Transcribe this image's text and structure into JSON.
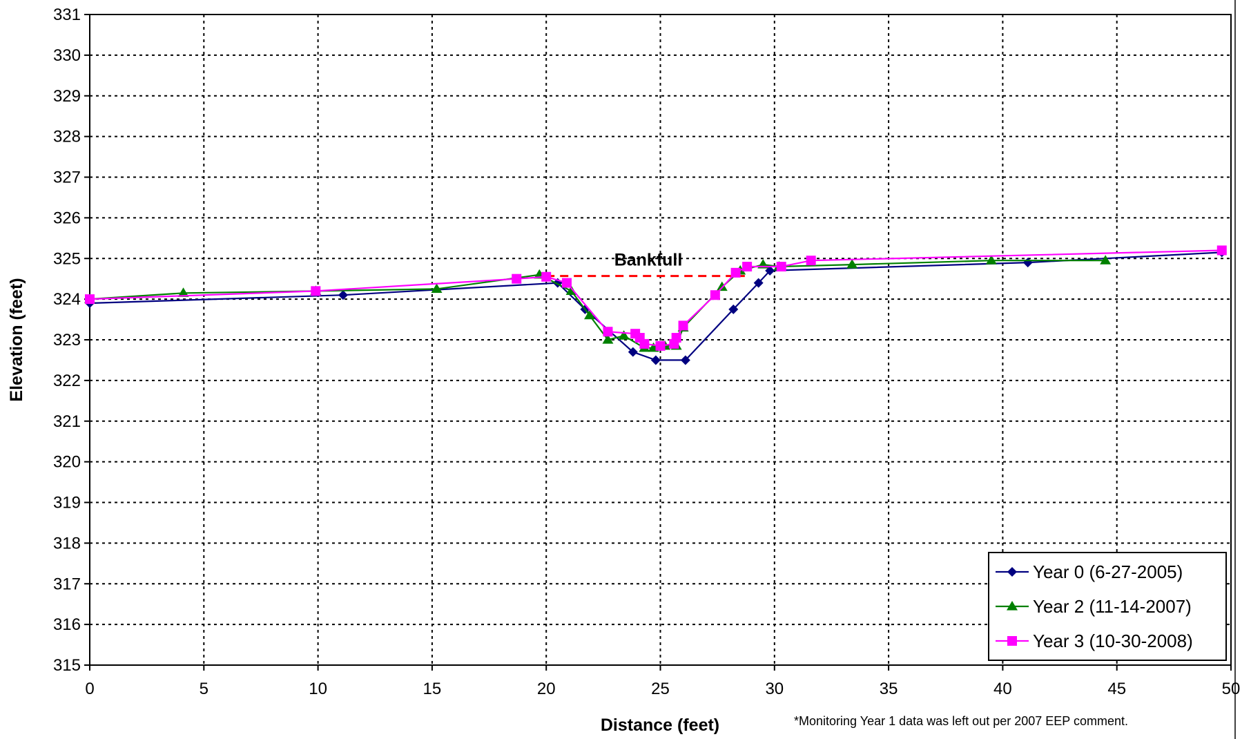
{
  "chart_data": {
    "type": "line",
    "title": "",
    "xlabel": "Distance (feet)",
    "ylabel": "Elevation (feet)",
    "xlim": [
      0,
      50
    ],
    "ylim": [
      315,
      331
    ],
    "x_ticks": [
      0,
      5,
      10,
      15,
      20,
      25,
      30,
      35,
      40,
      45,
      50
    ],
    "y_ticks": [
      315,
      316,
      317,
      318,
      319,
      320,
      321,
      322,
      323,
      324,
      325,
      326,
      327,
      328,
      329,
      330,
      331
    ],
    "grid": true,
    "legend_position": "bottom-right",
    "series": [
      {
        "name": "Year 0 (6-27-2005)",
        "color": "#000080",
        "marker": "diamond",
        "points": [
          [
            0,
            323.9
          ],
          [
            11.1,
            324.1
          ],
          [
            20.5,
            324.4
          ],
          [
            21.7,
            323.75
          ],
          [
            23.8,
            322.7
          ],
          [
            24.8,
            322.5
          ],
          [
            26.1,
            322.5
          ],
          [
            28.2,
            323.75
          ],
          [
            29.3,
            324.4
          ],
          [
            29.8,
            324.7
          ],
          [
            41.1,
            324.9
          ],
          [
            49.6,
            325.15
          ]
        ]
      },
      {
        "name": "Year 2 (11-14-2007)",
        "color": "#008000",
        "marker": "triangle",
        "points": [
          [
            0,
            324.0
          ],
          [
            4.1,
            324.15
          ],
          [
            9.9,
            324.2
          ],
          [
            15.2,
            324.25
          ],
          [
            19.7,
            324.6
          ],
          [
            21.1,
            324.2
          ],
          [
            21.9,
            323.6
          ],
          [
            22.7,
            323.0
          ],
          [
            23.4,
            323.1
          ],
          [
            24.3,
            322.8
          ],
          [
            24.7,
            322.8
          ],
          [
            25.2,
            322.85
          ],
          [
            25.7,
            322.85
          ],
          [
            26.0,
            323.3
          ],
          [
            27.7,
            324.3
          ],
          [
            28.5,
            324.7
          ],
          [
            29.5,
            324.85
          ],
          [
            30.2,
            324.8
          ],
          [
            33.4,
            324.85
          ],
          [
            39.5,
            324.95
          ],
          [
            44.5,
            324.95
          ]
        ]
      },
      {
        "name": "Year 3 (10-30-2008)",
        "color": "#FF00FF",
        "marker": "square",
        "points": [
          [
            0,
            324.0
          ],
          [
            9.9,
            324.2
          ],
          [
            18.7,
            324.5
          ],
          [
            20.0,
            324.55
          ],
          [
            20.9,
            324.4
          ],
          [
            22.7,
            323.2
          ],
          [
            23.9,
            323.15
          ],
          [
            24.1,
            323.05
          ],
          [
            24.3,
            322.9
          ],
          [
            25.0,
            322.85
          ],
          [
            25.6,
            322.9
          ],
          [
            25.7,
            323.05
          ],
          [
            26.0,
            323.35
          ],
          [
            27.4,
            324.1
          ],
          [
            28.3,
            324.65
          ],
          [
            28.8,
            324.8
          ],
          [
            30.3,
            324.8
          ],
          [
            31.6,
            324.95
          ],
          [
            49.6,
            325.2
          ]
        ]
      }
    ],
    "bankfull": {
      "label": "Bankfull",
      "color": "#FF0000",
      "elevation": 324.57,
      "x_range": [
        20.0,
        28.7
      ]
    },
    "footnote": "*Monitoring Year 1 data was left out per 2007 EEP comment."
  }
}
